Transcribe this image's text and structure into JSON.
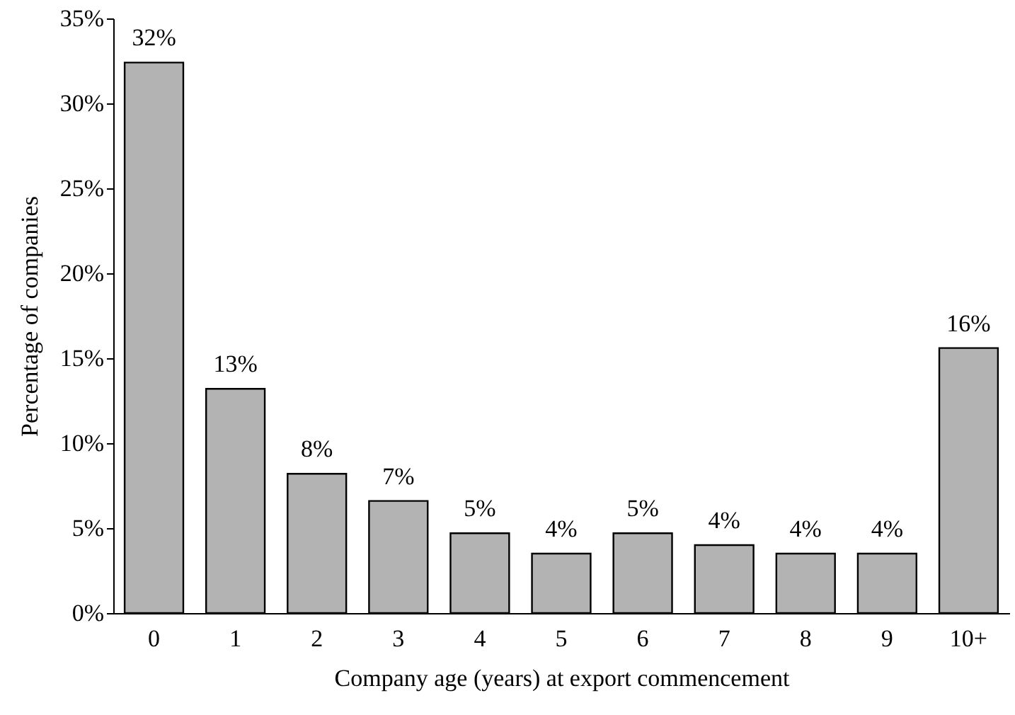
{
  "chart_data": {
    "type": "bar",
    "xlabel": "Company age (years) at export commencement",
    "ylabel": "Percentage of companies",
    "categories": [
      "0",
      "1",
      "2",
      "3",
      "4",
      "5",
      "6",
      "7",
      "8",
      "9",
      "10+"
    ],
    "values": [
      32.4,
      13.2,
      8.2,
      6.6,
      4.7,
      3.5,
      4.7,
      4.0,
      3.5,
      3.5,
      15.6
    ],
    "value_labels": [
      "32%",
      "13%",
      "8%",
      "7%",
      "5%",
      "4%",
      "5%",
      "4%",
      "4%",
      "4%",
      "16%"
    ],
    "color": "#b3b3b3",
    "ylim": [
      0,
      35
    ],
    "yticks": [
      {
        "value": 0,
        "label": "0%"
      },
      {
        "value": 5,
        "label": "5%"
      },
      {
        "value": 10,
        "label": "10%"
      },
      {
        "value": 15,
        "label": "15%"
      },
      {
        "value": 20,
        "label": "20%"
      },
      {
        "value": 25,
        "label": "25%"
      },
      {
        "value": 30,
        "label": "30%"
      },
      {
        "value": 35,
        "label": "35%"
      }
    ],
    "grid": false
  }
}
